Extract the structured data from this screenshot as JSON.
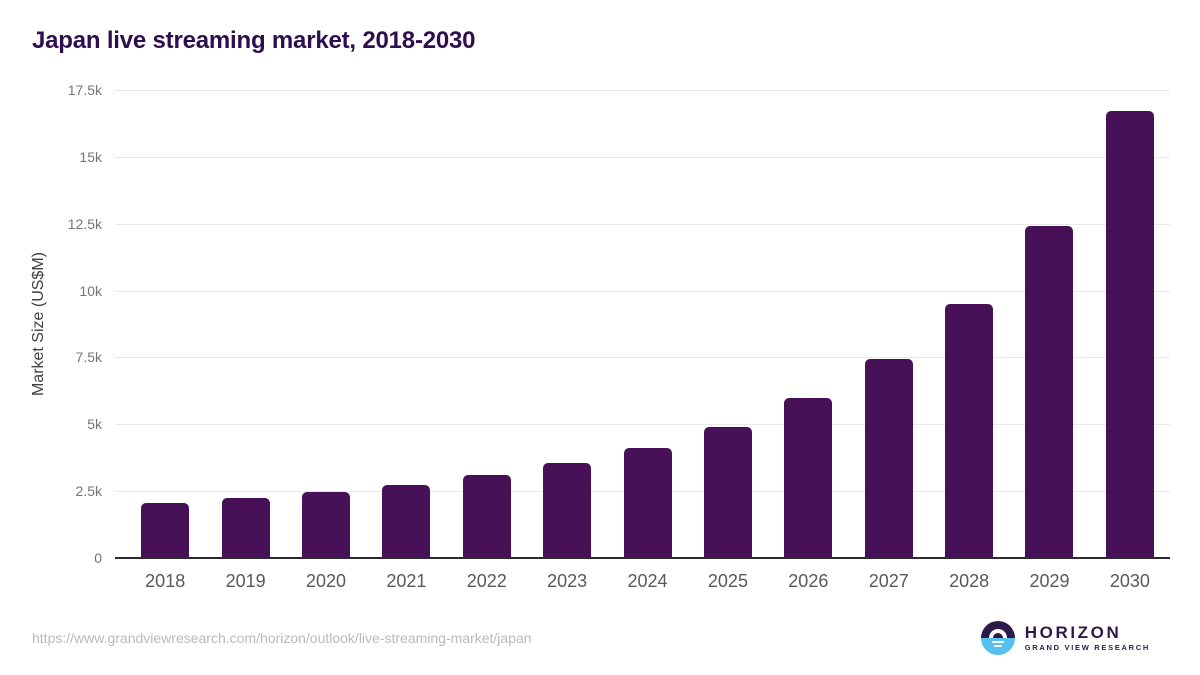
{
  "title": "Japan live streaming market, 2018-2030",
  "chart_data": {
    "type": "bar",
    "title": "Japan live streaming market, 2018-2030",
    "categories": [
      "2018",
      "2019",
      "2020",
      "2021",
      "2022",
      "2023",
      "2024",
      "2025",
      "2026",
      "2027",
      "2028",
      "2029",
      "2030"
    ],
    "values": [
      2050,
      2250,
      2460,
      2720,
      3090,
      3540,
      4110,
      4900,
      6000,
      7460,
      9480,
      12400,
      16700
    ],
    "xlabel": "",
    "ylabel": "Market Size (US$M)",
    "ylim": [
      0,
      17500
    ],
    "yticks": [
      {
        "value": 0,
        "label": "0"
      },
      {
        "value": 2500,
        "label": "2.5k"
      },
      {
        "value": 5000,
        "label": "5k"
      },
      {
        "value": 7500,
        "label": "7.5k"
      },
      {
        "value": 10000,
        "label": "10k"
      },
      {
        "value": 12500,
        "label": "12.5k"
      },
      {
        "value": 15000,
        "label": "15k"
      },
      {
        "value": 17500,
        "label": "17.5k"
      }
    ],
    "grid": true,
    "legend": false,
    "bar_color": "#481056"
  },
  "colors": {
    "bar": "#481056",
    "title_text": "#2f0e4e",
    "gridline": "#e8e8e8",
    "axis_line": "#2b2b2b",
    "ytick_text": "#757575",
    "xtick_text": "#58595b",
    "url_text": "#b8babc",
    "logo_purple": "#2e1a47",
    "logo_blue": "#56c0ee"
  },
  "footer": {
    "source_url": "https://www.grandviewresearch.com/horizon/outlook/live-streaming-market/japan",
    "logo": {
      "name": "HORIZON",
      "subtitle": "GRAND VIEW RESEARCH"
    }
  }
}
